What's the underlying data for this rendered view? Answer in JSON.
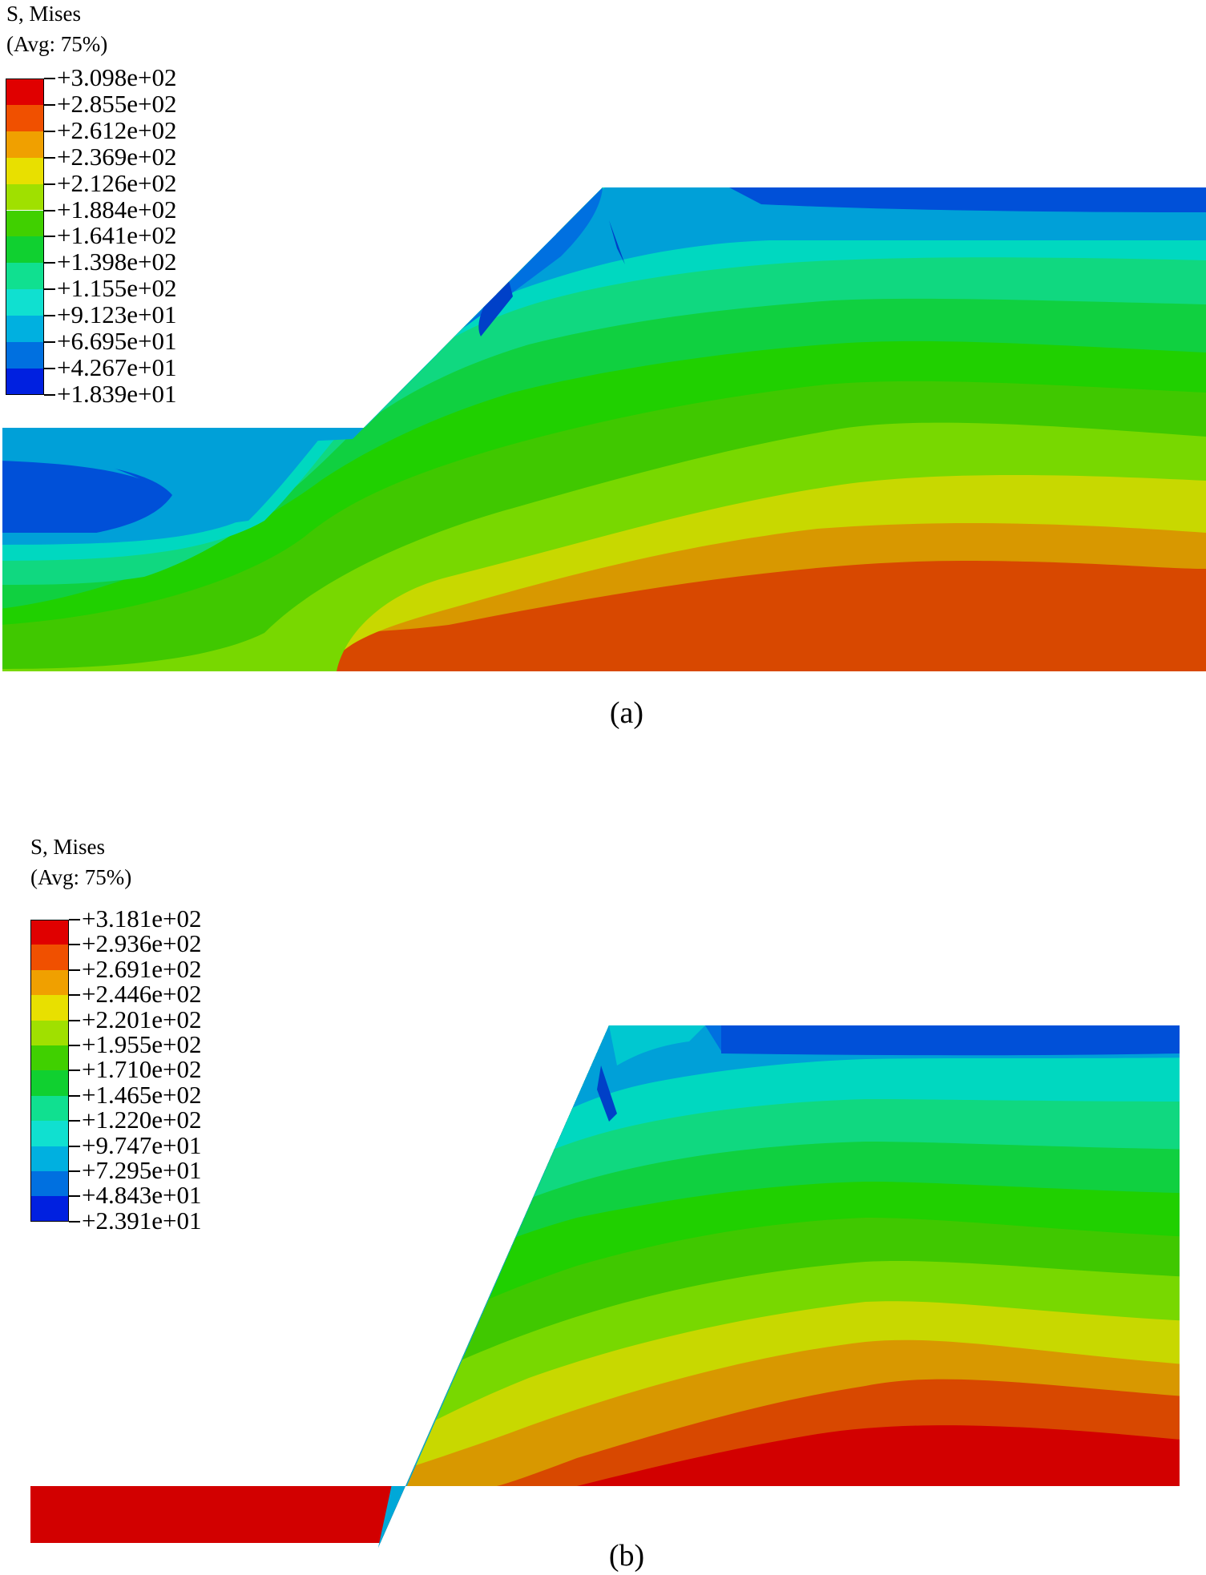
{
  "panels": [
    {
      "id": "a",
      "legend_title": "S, Mises",
      "legend_subtitle": "(Avg: 75%)",
      "legend_values": [
        "+3.098e+02",
        "+2.855e+02",
        "+2.612e+02",
        "+2.369e+02",
        "+2.126e+02",
        "+1.884e+02",
        "+1.641e+02",
        "+1.398e+02",
        "+1.155e+02",
        "+9.123e+01",
        "+6.695e+01",
        "+4.267e+01",
        "+1.839e+01"
      ],
      "caption": "(a)"
    },
    {
      "id": "b",
      "legend_title": "S, Mises",
      "legend_subtitle": "(Avg: 75%)",
      "legend_values": [
        "+3.181e+02",
        "+2.936e+02",
        "+2.691e+02",
        "+2.446e+02",
        "+2.201e+02",
        "+1.955e+02",
        "+1.710e+02",
        "+1.465e+02",
        "+1.220e+02",
        "+9.747e+01",
        "+7.295e+01",
        "+4.843e+01",
        "+2.391e+01"
      ],
      "caption": "(b)"
    }
  ],
  "colors": {
    "scale": [
      "#e00000",
      "#f05000",
      "#f0a000",
      "#e8e000",
      "#a0e000",
      "#40d000",
      "#10d030",
      "#10e090",
      "#10e0d0",
      "#00b0e0",
      "#0070e0",
      "#0020e0"
    ]
  }
}
